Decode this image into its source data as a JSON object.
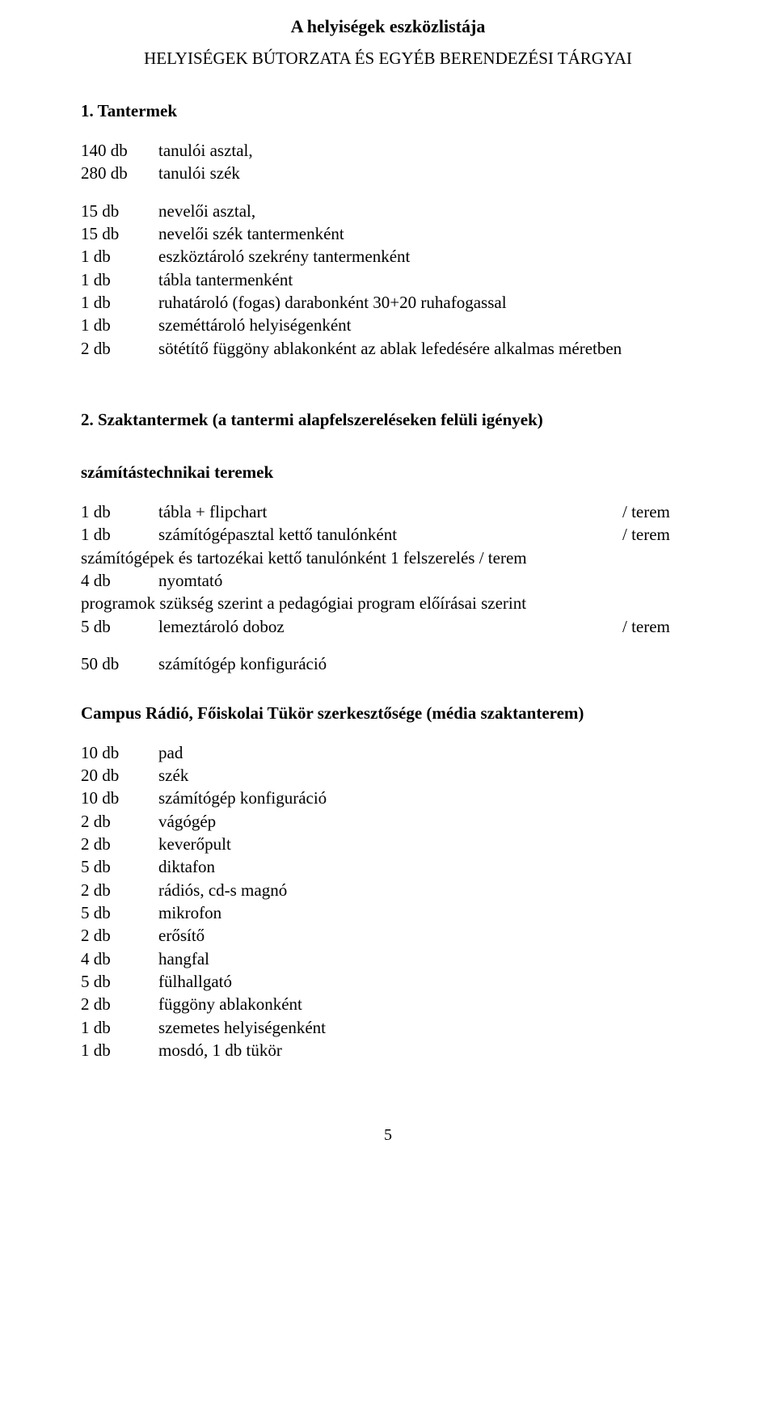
{
  "title": "A helyiségek eszközlistája",
  "subtitle": "HELYISÉGEK BÚTORZATA ÉS EGYÉB BERENDEZÉSI TÁRGYAI",
  "section1": {
    "heading": "1. Tantermek",
    "group1": [
      {
        "qty": "140 db",
        "desc": "tanulói asztal,"
      },
      {
        "qty": "280 db",
        "desc": "tanulói szék"
      }
    ],
    "group2": [
      {
        "qty": "15 db",
        "desc": "nevelői asztal,"
      },
      {
        "qty": "15 db",
        "desc": "nevelői szék tantermenként"
      },
      {
        "qty": "1 db",
        "desc": "eszköztároló szekrény tantermenként"
      },
      {
        "qty": "1 db",
        "desc": "tábla tantermenként"
      },
      {
        "qty": "1 db",
        "desc": "ruhatároló (fogas) darabonként 30+20 ruhafogassal"
      },
      {
        "qty": "1 db",
        "desc": "szeméttároló helyiségenként"
      },
      {
        "qty": "2 db",
        "desc": "sötétítő függöny ablakonként az ablak lefedésére alkalmas méretben"
      }
    ]
  },
  "section2": {
    "heading": "2. Szaktantermek (a tantermi alapfelszereléseken felüli igények)",
    "sub1": {
      "title": "számítástechnikai teremek",
      "rows": [
        {
          "qty": "1 db",
          "desc": "tábla + flipchart",
          "suffix": "/ terem"
        },
        {
          "qty": "1 db",
          "desc": "számítógépasztal kettő tanulónként",
          "suffix": "/ terem"
        }
      ],
      "line1": "számítógépek és tartozékai kettő tanulónként 1 felszerelés  / terem",
      "row_after": {
        "qty": "4 db",
        "desc": "nyomtató"
      },
      "line2": "programok szükség szerint a pedagógiai program előírásai szerint",
      "row5": {
        "qty": "5 db",
        "desc": "lemeztároló doboz",
        "suffix": "/ terem"
      },
      "row6": {
        "qty": "50 db",
        "desc": "számítógép konfiguráció"
      }
    },
    "sub2": {
      "title": "Campus Rádió, Főiskolai Tükör szerkesztősége (média szaktanterem)",
      "rows": [
        {
          "qty": "10 db",
          "desc": "pad"
        },
        {
          "qty": "20 db",
          "desc": "szék"
        },
        {
          "qty": "10 db",
          "desc": "számítógép konfiguráció"
        },
        {
          "qty": "2 db",
          "desc": "vágógép"
        },
        {
          "qty": "2 db",
          "desc": "keverőpult"
        },
        {
          "qty": "5 db",
          "desc": "diktafon"
        },
        {
          "qty": "2 db",
          "desc": "rádiós, cd-s magnó"
        },
        {
          "qty": "5 db",
          "desc": "mikrofon"
        },
        {
          "qty": "2 db",
          "desc": "erősítő"
        },
        {
          "qty": "4 db",
          "desc": "hangfal"
        },
        {
          "qty": "5 db",
          "desc": "fülhallgató"
        },
        {
          "qty": "2 db",
          "desc": "függöny ablakonként"
        },
        {
          "qty": "1 db",
          "desc": "szemetes helyiségenként"
        },
        {
          "qty": "1 db",
          "desc": "mosdó, 1 db tükör"
        }
      ]
    }
  },
  "pagenum": "5"
}
